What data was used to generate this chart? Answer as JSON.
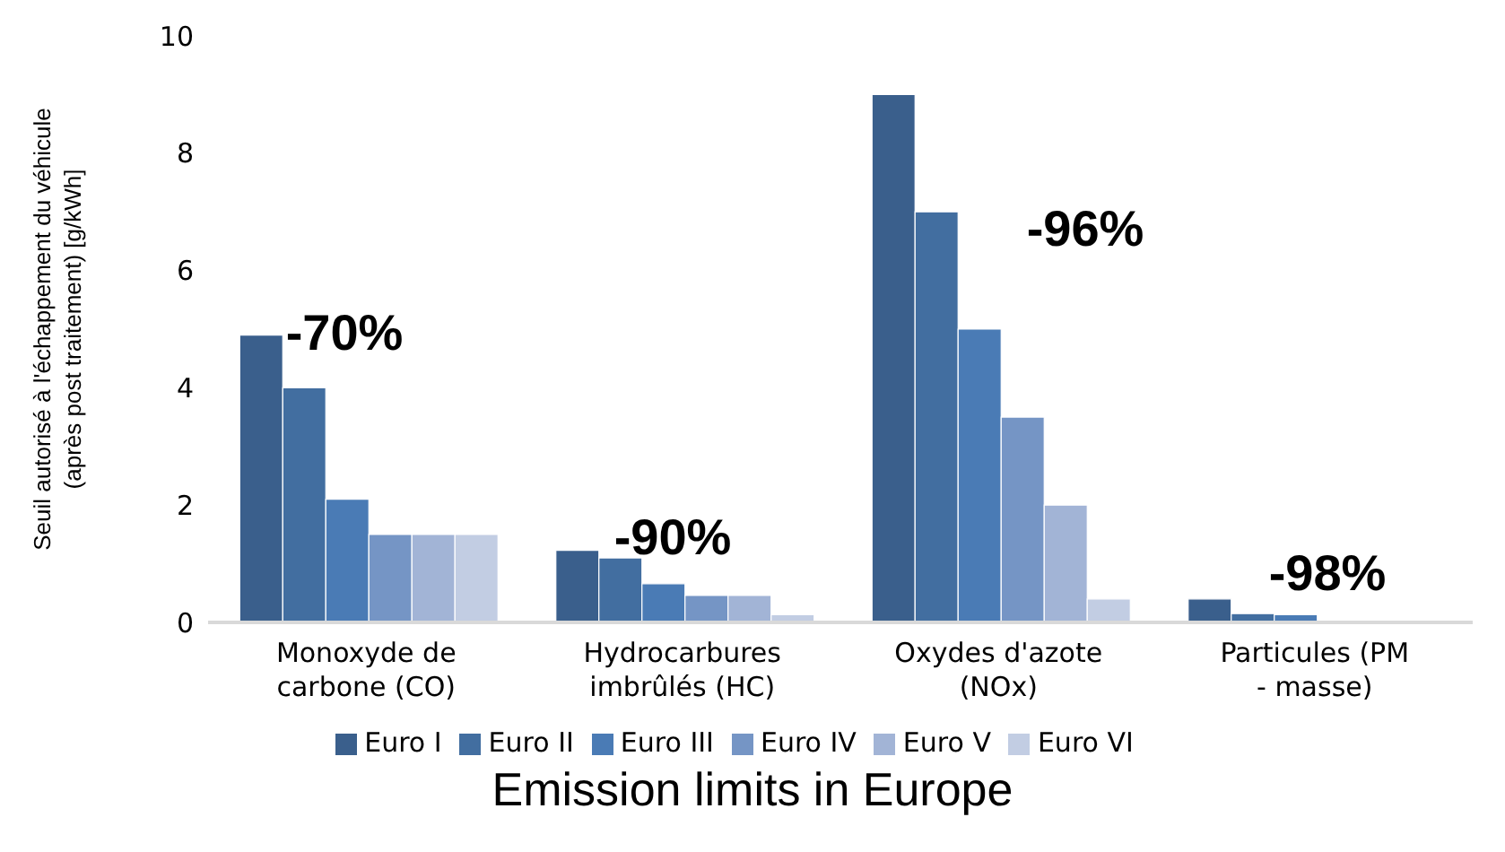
{
  "chart_data": {
    "type": "bar",
    "title": "Emission limits in Europe",
    "ylabel": "Seuil autorisé à l'échappement du véhicule (après post traitement) [g/kWh]",
    "categories": [
      "Monoxyde de carbone (CO)",
      "Hydrocarbures imbrûlés (HC)",
      "Oxydes d'azote (NOx)",
      "Particules (PM - masse)"
    ],
    "series": [
      {
        "name": "Euro I",
        "color": "#3a5f8c",
        "values": [
          4.9,
          1.23,
          9.0,
          0.4
        ]
      },
      {
        "name": "Euro II",
        "color": "#426ea0",
        "values": [
          4.0,
          1.1,
          7.0,
          0.15
        ]
      },
      {
        "name": "Euro III",
        "color": "#4a7bb5",
        "values": [
          2.1,
          0.66,
          5.0,
          0.13
        ]
      },
      {
        "name": "Euro IV",
        "color": "#7595c5",
        "values": [
          1.5,
          0.46,
          3.5,
          null
        ]
      },
      {
        "name": "Euro V",
        "color": "#a2b4d6",
        "values": [
          1.5,
          0.46,
          2.0,
          null
        ]
      },
      {
        "name": "Euro VI",
        "color": "#c2cde3",
        "values": [
          1.5,
          0.13,
          0.4,
          0.01
        ]
      }
    ],
    "ylim": [
      0,
      10
    ],
    "yticks": [
      0,
      2,
      4,
      6,
      8,
      10
    ],
    "grid": false,
    "legend": "bottom",
    "annotations": [
      "-70%",
      "-90%",
      "-96%",
      "-98%"
    ]
  }
}
